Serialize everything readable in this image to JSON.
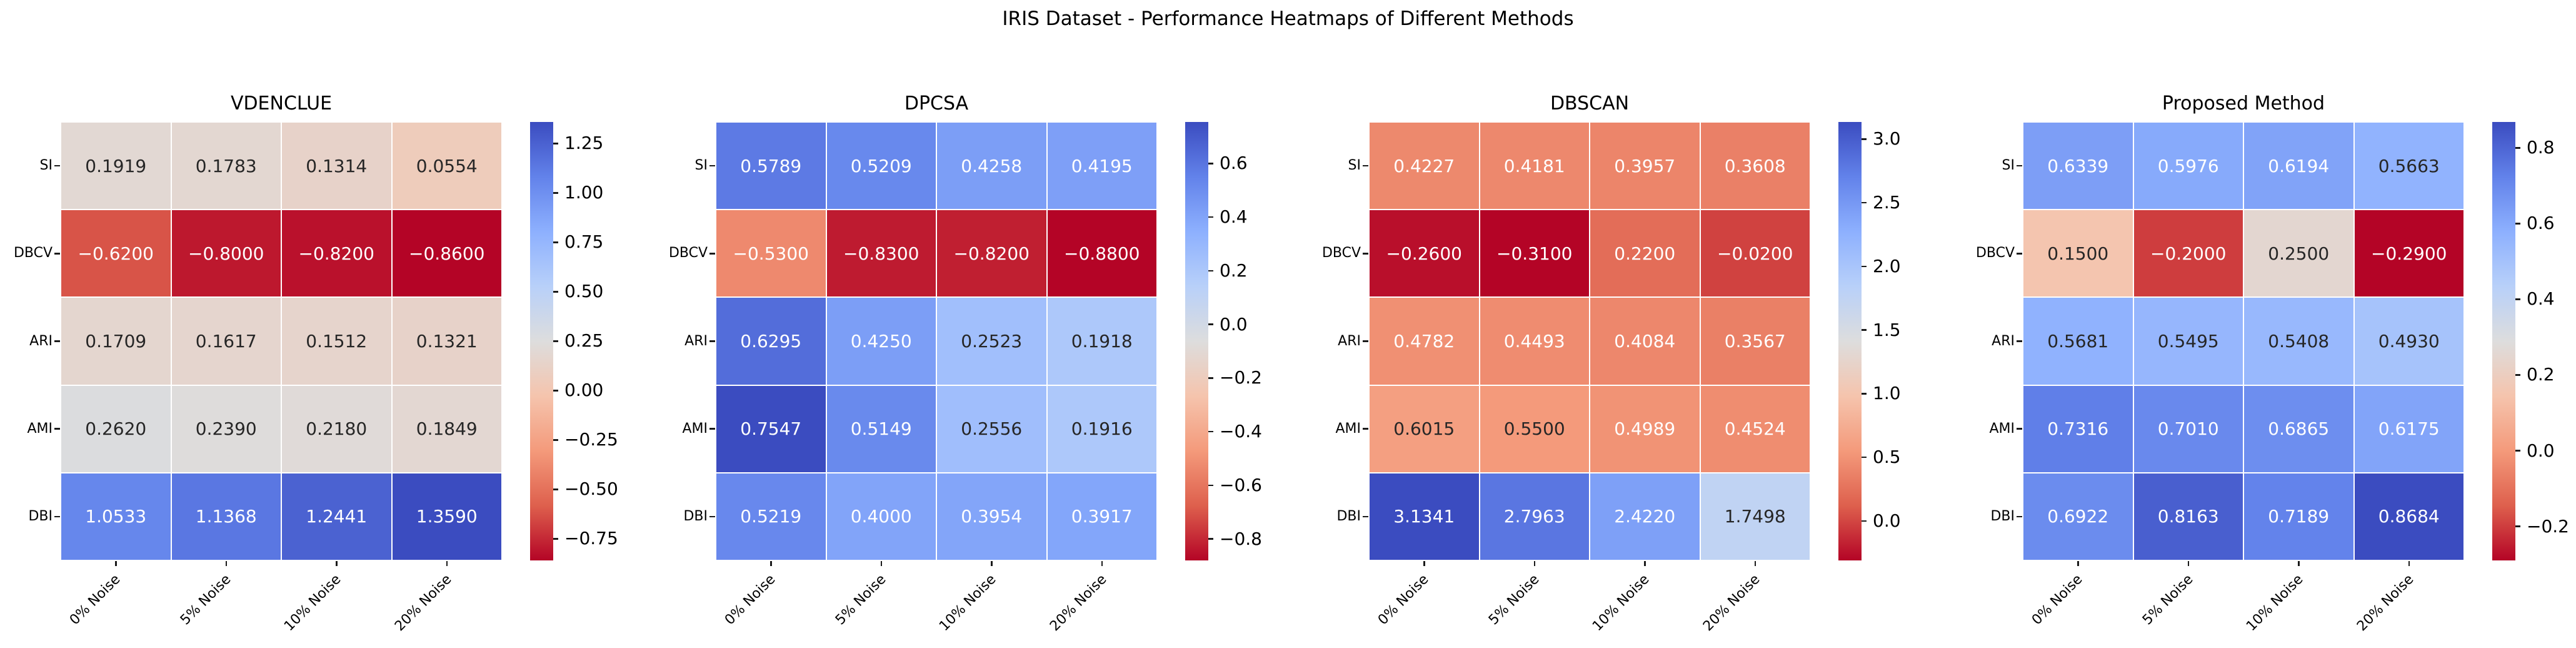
{
  "figure": {
    "suptitle": "IRIS Dataset - Performance Heatmaps of Different Methods",
    "background": "#ffffff",
    "cell_border_color": "#ffffff",
    "dark_text_color": "#262626",
    "light_text_color": "#ffffff",
    "tick_color": "#1a1a1a"
  },
  "chart_data": [
    {
      "type": "heatmap",
      "title": "VDENCLUE",
      "rows": [
        "SI",
        "DBCV",
        "ARI",
        "AMI",
        "DBI"
      ],
      "columns": [
        "0% Noise",
        "5% Noise",
        "10% Noise",
        "20% Noise"
      ],
      "values": [
        [
          0.1919,
          0.1783,
          0.1314,
          0.0554
        ],
        [
          -0.62,
          -0.8,
          -0.82,
          -0.86
        ],
        [
          0.1709,
          0.1617,
          0.1512,
          0.1321
        ],
        [
          0.262,
          0.239,
          0.218,
          0.1849
        ],
        [
          1.0533,
          1.1368,
          1.2441,
          1.359
        ]
      ],
      "value_decimals": 4,
      "colormap": "coolwarm_r",
      "vmin": -0.86,
      "vmax": 1.359,
      "colorbar_ticks": [
        1.25,
        1.0,
        0.75,
        0.5,
        0.25,
        0.0,
        -0.25,
        -0.5,
        -0.75
      ],
      "colorbar_tick_labels": [
        "1.25",
        "1.00",
        "0.75",
        "0.50",
        "0.25",
        "0.00",
        "−0.25",
        "−0.50",
        "−0.75"
      ],
      "legend_position": "right"
    },
    {
      "type": "heatmap",
      "title": "DPCSA",
      "rows": [
        "SI",
        "DBCV",
        "ARI",
        "AMI",
        "DBI"
      ],
      "columns": [
        "0% Noise",
        "5% Noise",
        "10% Noise",
        "20% Noise"
      ],
      "values": [
        [
          0.5789,
          0.5209,
          0.4258,
          0.4195
        ],
        [
          -0.53,
          -0.83,
          -0.82,
          -0.88
        ],
        [
          0.6295,
          0.425,
          0.2523,
          0.1918
        ],
        [
          0.7547,
          0.5149,
          0.2556,
          0.1916
        ],
        [
          0.5219,
          0.4,
          0.3954,
          0.3917
        ]
      ],
      "value_decimals": 4,
      "colormap": "coolwarm_r",
      "vmin": -0.88,
      "vmax": 0.7547,
      "colorbar_ticks": [
        0.6,
        0.4,
        0.2,
        0.0,
        -0.2,
        -0.4,
        -0.6,
        -0.8
      ],
      "colorbar_tick_labels": [
        "0.6",
        "0.4",
        "0.2",
        "0.0",
        "−0.2",
        "−0.4",
        "−0.6",
        "−0.8"
      ],
      "legend_position": "right"
    },
    {
      "type": "heatmap",
      "title": "DBSCAN",
      "rows": [
        "SI",
        "DBCV",
        "ARI",
        "AMI",
        "DBI"
      ],
      "columns": [
        "0% Noise",
        "5% Noise",
        "10% Noise",
        "20% Noise"
      ],
      "values": [
        [
          0.4227,
          0.4181,
          0.3957,
          0.3608
        ],
        [
          -0.26,
          -0.31,
          0.22,
          -0.02
        ],
        [
          0.4782,
          0.4493,
          0.4084,
          0.3567
        ],
        [
          0.6015,
          0.55,
          0.4989,
          0.4524
        ],
        [
          3.1341,
          2.7963,
          2.422,
          1.7498
        ]
      ],
      "value_decimals": 4,
      "colormap": "coolwarm_r",
      "vmin": -0.31,
      "vmax": 3.1341,
      "colorbar_ticks": [
        3.0,
        2.5,
        2.0,
        1.5,
        1.0,
        0.5,
        0.0
      ],
      "colorbar_tick_labels": [
        "3.0",
        "2.5",
        "2.0",
        "1.5",
        "1.0",
        "0.5",
        "0.0"
      ],
      "legend_position": "right"
    },
    {
      "type": "heatmap",
      "title": "Proposed Method",
      "rows": [
        "SI",
        "DBCV",
        "ARI",
        "AMI",
        "DBI"
      ],
      "columns": [
        "0% Noise",
        "5% Noise",
        "10% Noise",
        "20% Noise"
      ],
      "values": [
        [
          0.6339,
          0.5976,
          0.6194,
          0.5663
        ],
        [
          0.15,
          -0.2,
          0.25,
          -0.29
        ],
        [
          0.5681,
          0.5495,
          0.5408,
          0.493
        ],
        [
          0.7316,
          0.701,
          0.6865,
          0.6175
        ],
        [
          0.6922,
          0.8163,
          0.7189,
          0.8684
        ]
      ],
      "value_decimals": 4,
      "colormap": "coolwarm_r",
      "vmin": -0.29,
      "vmax": 0.8684,
      "colorbar_ticks": [
        0.8,
        0.6,
        0.4,
        0.2,
        0.0,
        -0.2
      ],
      "colorbar_tick_labels": [
        "0.8",
        "0.6",
        "0.4",
        "0.2",
        "0.0",
        "−0.2"
      ],
      "legend_position": "right"
    }
  ]
}
